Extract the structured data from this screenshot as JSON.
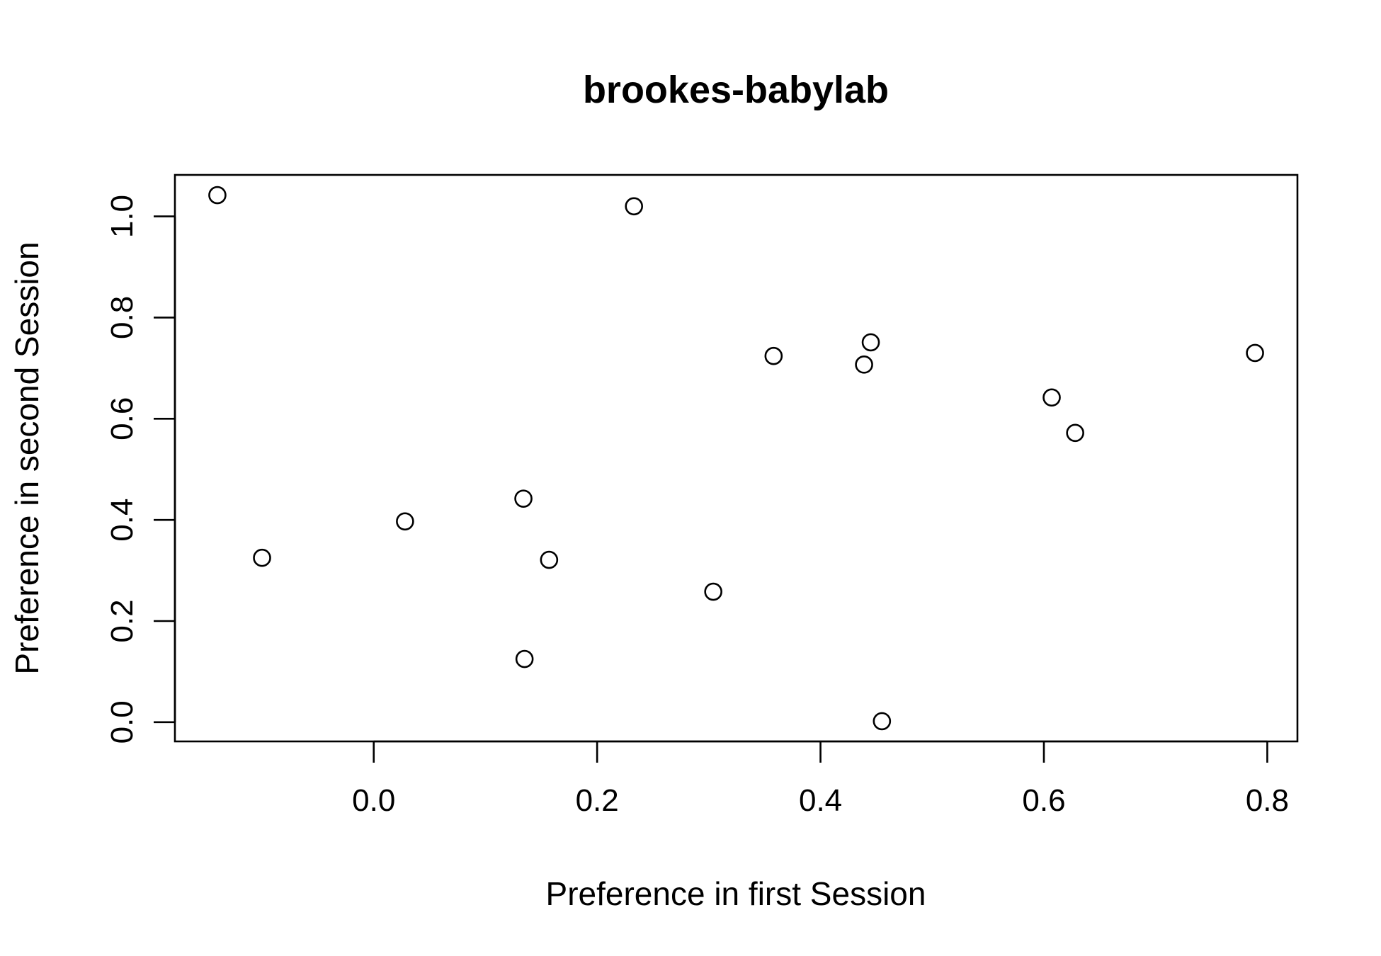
{
  "chart_data": {
    "type": "scatter",
    "title": "brookes-babylab",
    "xlabel": "Preference in first Session",
    "ylabel": "Preference in second Session",
    "xlim": [
      -0.178,
      0.827
    ],
    "ylim": [
      -0.038,
      1.082
    ],
    "xticks": [
      0.0,
      0.2,
      0.4,
      0.6,
      0.8
    ],
    "xtick_labels": [
      "0.0",
      "0.2",
      "0.4",
      "0.6",
      "0.8"
    ],
    "yticks": [
      0.0,
      0.2,
      0.4,
      0.6,
      0.8,
      1.0
    ],
    "ytick_labels": [
      "0.0",
      "0.2",
      "0.4",
      "0.6",
      "0.8",
      "1.0"
    ],
    "grid": false,
    "marker": "open-circle",
    "points": [
      {
        "x": -0.14,
        "y": 1.042
      },
      {
        "x": -0.1,
        "y": 0.325
      },
      {
        "x": 0.028,
        "y": 0.397
      },
      {
        "x": 0.134,
        "y": 0.442
      },
      {
        "x": 0.135,
        "y": 0.125
      },
      {
        "x": 0.157,
        "y": 0.321
      },
      {
        "x": 0.233,
        "y": 1.02
      },
      {
        "x": 0.304,
        "y": 0.258
      },
      {
        "x": 0.358,
        "y": 0.724
      },
      {
        "x": 0.439,
        "y": 0.707
      },
      {
        "x": 0.445,
        "y": 0.751
      },
      {
        "x": 0.455,
        "y": 0.002
      },
      {
        "x": 0.607,
        "y": 0.642
      },
      {
        "x": 0.628,
        "y": 0.572
      },
      {
        "x": 0.789,
        "y": 0.73
      }
    ]
  }
}
